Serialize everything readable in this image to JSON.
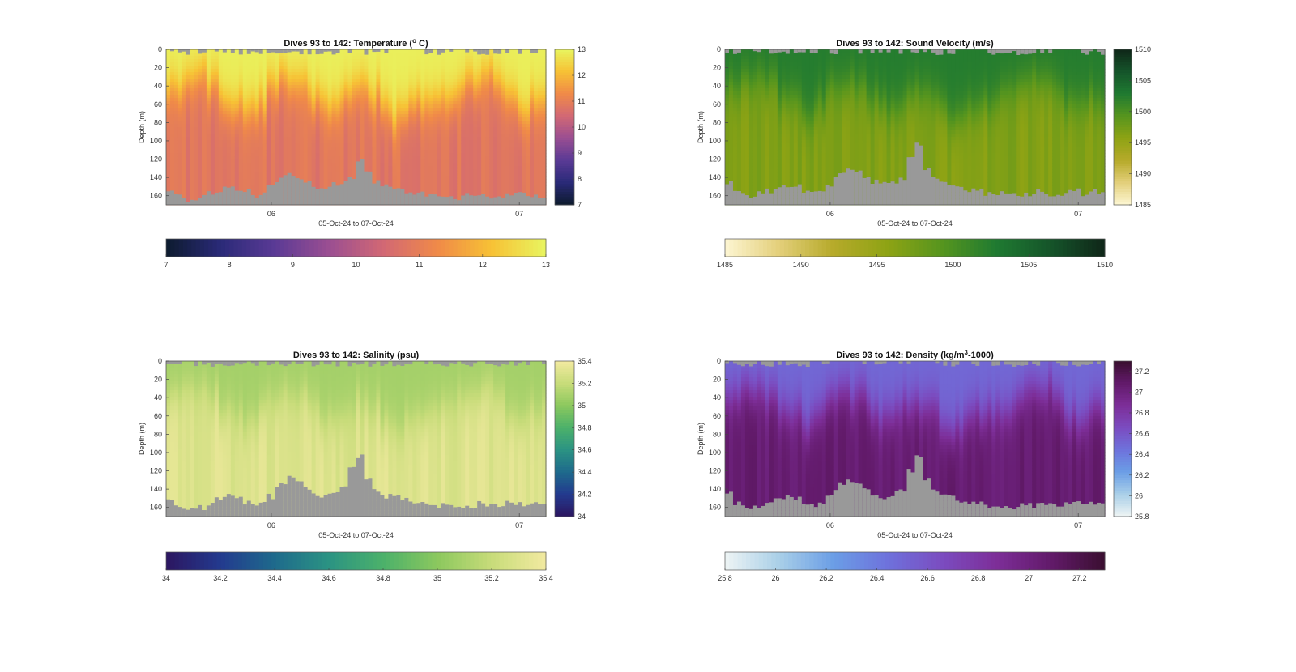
{
  "chart_data": [
    {
      "type": "heatmap",
      "title_main": "Dives 93 to 142: Temperature (",
      "title_sup": "o",
      "title_tail": " C)",
      "xlabel": "05-Oct-24 to 07-Oct-24",
      "ylabel": "Depth (m)",
      "x_ticks": [
        "06",
        "07"
      ],
      "y_ticks": [
        "0",
        "20",
        "40",
        "60",
        "80",
        "100",
        "120",
        "140",
        "160"
      ],
      "ylim": [
        0,
        170
      ],
      "xlim_dives": [
        93,
        142
      ],
      "colorbar": {
        "min": 7,
        "max": 13,
        "ticks": [
          "7",
          "8",
          "9",
          "10",
          "11",
          "12",
          "13"
        ]
      },
      "colormap": [
        "#0d1b2e",
        "#2a2a78",
        "#5a3a95",
        "#9a4e92",
        "#d26874",
        "#f08a48",
        "#f7c235",
        "#e8f560"
      ],
      "profile": {
        "surface_value": 12.9,
        "deep_value": 10.8,
        "mixed_layer_m": [
          45,
          35,
          30,
          40,
          55,
          60,
          70,
          60,
          45,
          35,
          40,
          55,
          65,
          60,
          50,
          45,
          50,
          70,
          75,
          65,
          60,
          55,
          50,
          40,
          35,
          30,
          45,
          60,
          65,
          55
        ]
      },
      "bathymetry_m": [
        155,
        160,
        165,
        165,
        160,
        158,
        155,
        150,
        150,
        152,
        155,
        160,
        158,
        150,
        145,
        140,
        138,
        140,
        145,
        150,
        150,
        152,
        148,
        145,
        140,
        120,
        135,
        145,
        148,
        150,
        152,
        155,
        158,
        158,
        160,
        160,
        160,
        160,
        162,
        160,
        160,
        160,
        160,
        162,
        160,
        160,
        158,
        158,
        160,
        160
      ]
    },
    {
      "type": "heatmap",
      "title_main": "Dives 93 to 142: Sound Velocity (m/s)",
      "title_sup": "",
      "title_tail": "",
      "xlabel": "05-Oct-24 to 07-Oct-24",
      "ylabel": "Depth (m)",
      "x_ticks": [
        "06",
        "07"
      ],
      "y_ticks": [
        "0",
        "20",
        "40",
        "60",
        "80",
        "100",
        "120",
        "140",
        "160"
      ],
      "ylim": [
        0,
        170
      ],
      "colorbar": {
        "min": 1485,
        "max": 1510,
        "ticks": [
          "1485",
          "1490",
          "1495",
          "1500",
          "1505",
          "1510"
        ]
      },
      "colormap": [
        "#fdf6d2",
        "#e3cf7a",
        "#b6aa2a",
        "#8ea314",
        "#56951e",
        "#1f7a31",
        "#15542a",
        "#0f2618"
      ],
      "profile": {
        "surface_value": 1502.5,
        "deep_value": 1496.5,
        "mixed_layer_m": [
          45,
          35,
          30,
          40,
          55,
          60,
          70,
          60,
          45,
          35,
          40,
          55,
          65,
          60,
          50,
          45,
          50,
          70,
          75,
          65,
          60,
          55,
          50,
          40,
          35,
          30,
          45,
          60,
          65,
          55
        ]
      },
      "bathymetry_m": [
        145,
        155,
        160,
        160,
        158,
        155,
        150,
        148,
        148,
        150,
        155,
        158,
        155,
        148,
        142,
        135,
        132,
        135,
        140,
        145,
        148,
        148,
        145,
        140,
        120,
        105,
        130,
        140,
        145,
        148,
        150,
        152,
        155,
        155,
        158,
        158,
        158,
        158,
        160,
        158,
        158,
        155,
        158,
        158,
        158,
        155,
        155,
        158,
        155,
        155
      ]
    },
    {
      "type": "heatmap",
      "title_main": "Dives 93 to 142: Salinity (psu)",
      "title_sup": "",
      "title_tail": "",
      "xlabel": "05-Oct-24 to 07-Oct-24",
      "ylabel": "Depth (m)",
      "x_ticks": [
        "06",
        "07"
      ],
      "y_ticks": [
        "0",
        "20",
        "40",
        "60",
        "80",
        "100",
        "120",
        "140",
        "160"
      ],
      "ylim": [
        0,
        170
      ],
      "colorbar": {
        "min": 34,
        "max": 35.4,
        "ticks": [
          "34",
          "34.2",
          "34.4",
          "34.6",
          "34.8",
          "35",
          "35.2",
          "35.4"
        ]
      },
      "colormap": [
        "#2c1660",
        "#233a8e",
        "#1e6a8c",
        "#2b9383",
        "#4cb16a",
        "#8cc85e",
        "#c8dc7a",
        "#f2eaa0"
      ],
      "profile": {
        "surface_value": 35.08,
        "deep_value": 35.3,
        "mixed_layer_m": [
          45,
          35,
          30,
          40,
          55,
          60,
          70,
          60,
          45,
          35,
          40,
          55,
          65,
          60,
          50,
          45,
          50,
          70,
          75,
          65,
          60,
          55,
          50,
          40,
          35,
          30,
          45,
          60,
          65,
          55
        ]
      },
      "bathymetry_m": [
        150,
        158,
        163,
        163,
        160,
        155,
        150,
        148,
        148,
        150,
        155,
        158,
        155,
        148,
        140,
        132,
        128,
        132,
        138,
        145,
        148,
        148,
        145,
        138,
        115,
        105,
        130,
        140,
        145,
        148,
        150,
        152,
        155,
        155,
        158,
        158,
        158,
        158,
        160,
        158,
        158,
        155,
        158,
        158,
        158,
        155,
        155,
        158,
        155,
        155
      ]
    },
    {
      "type": "heatmap",
      "title_main": "Dives 93 to 142: Density (kg/m",
      "title_sup": "3",
      "title_tail": "-1000)",
      "xlabel": "05-Oct-24 to 07-Oct-24",
      "ylabel": "Depth (m)",
      "x_ticks": [
        "06",
        "07"
      ],
      "y_ticks": [
        "0",
        "20",
        "40",
        "60",
        "80",
        "100",
        "120",
        "140",
        "160"
      ],
      "ylim": [
        0,
        170
      ],
      "colorbar": {
        "min": 25.8,
        "max": 27.3,
        "ticks": [
          "25.8",
          "26",
          "26.2",
          "26.4",
          "26.6",
          "26.8",
          "27",
          "27.2"
        ]
      },
      "colormap": [
        "#eef4f4",
        "#a9cfe8",
        "#6b9ee6",
        "#6e72dc",
        "#7b4cc0",
        "#7d2e98",
        "#621a6a",
        "#3a0f30"
      ],
      "profile": {
        "surface_value": 26.5,
        "deep_value": 27.05,
        "mixed_layer_m": [
          45,
          35,
          30,
          40,
          55,
          60,
          70,
          60,
          45,
          35,
          40,
          55,
          65,
          60,
          50,
          45,
          50,
          70,
          75,
          65,
          60,
          55,
          50,
          40,
          35,
          30,
          45,
          60,
          65,
          55
        ]
      },
      "bathymetry_m": [
        145,
        155,
        160,
        160,
        158,
        155,
        150,
        148,
        148,
        150,
        155,
        158,
        155,
        148,
        142,
        135,
        132,
        135,
        140,
        145,
        148,
        148,
        145,
        140,
        120,
        105,
        130,
        140,
        145,
        148,
        150,
        152,
        155,
        155,
        158,
        158,
        158,
        158,
        160,
        158,
        158,
        155,
        158,
        158,
        158,
        155,
        155,
        158,
        155,
        155
      ]
    }
  ]
}
